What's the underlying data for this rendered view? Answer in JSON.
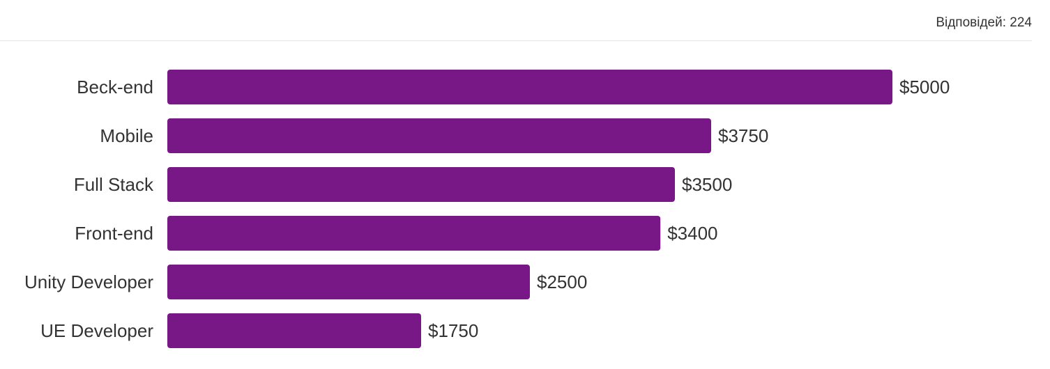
{
  "header": {
    "responses_label": "Відповідей:",
    "responses_count": "224"
  },
  "colors": {
    "bar": "#781887",
    "text": "#333333",
    "divider": "#e6e6e6"
  },
  "chart_data": {
    "type": "bar",
    "orientation": "horizontal",
    "categories": [
      "Beck-end",
      "Mobile",
      "Full Stack",
      "Front-end",
      "Unity Developer",
      "UE Developer"
    ],
    "values": [
      5000,
      3750,
      3500,
      3400,
      2500,
      1750
    ],
    "value_labels": [
      "$5000",
      "$3750",
      "$3500",
      "$3400",
      "$2500",
      "$1750"
    ],
    "title": "",
    "xlabel": "",
    "ylabel": "",
    "xlim": [
      0,
      5000
    ],
    "grid": false,
    "legend": "none"
  }
}
